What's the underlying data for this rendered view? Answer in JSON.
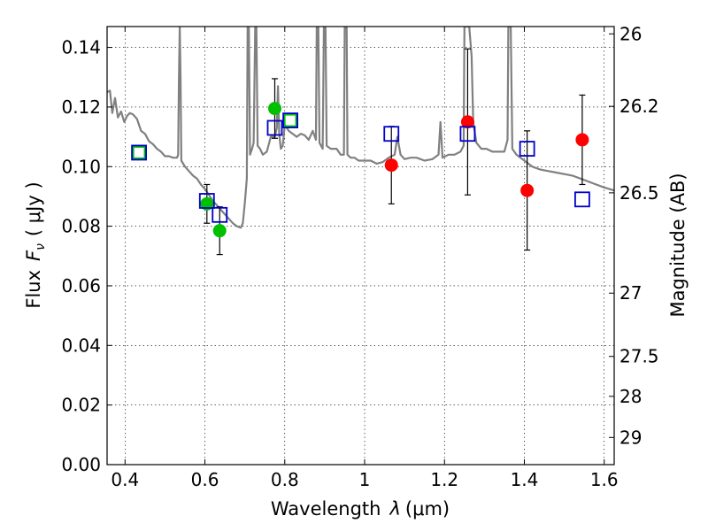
{
  "chart_data": {
    "type": "scatter",
    "xlabel_text": "Wavelength",
    "xlabel_symbol": "λ",
    "xlabel_unit": "(μm)",
    "ylabel_text": "Flux",
    "ylabel_symbol": "F",
    "ylabel_sub": "ν",
    "ylabel_unit": "( μJy )",
    "y2label": "Magnitude (AB)",
    "xlim": [
      0.355,
      1.625
    ],
    "ylim": [
      0.0,
      0.147
    ],
    "grid": true,
    "x_ticks": [
      0.4,
      0.6,
      0.8,
      1.0,
      1.2,
      1.4,
      1.6
    ],
    "x_tick_labels": [
      "0.4",
      "0.6",
      "0.8",
      "1",
      "1.2",
      "1.4",
      "1.6"
    ],
    "y_ticks": [
      0.0,
      0.02,
      0.04,
      0.06,
      0.08,
      0.1,
      0.12,
      0.14
    ],
    "y_tick_labels": [
      "0.00",
      "0.02",
      "0.04",
      "0.06",
      "0.08",
      "0.10",
      "0.12",
      "0.14"
    ],
    "y2_ticks": [
      26,
      26.2,
      26.5,
      27,
      27.5,
      28,
      29
    ],
    "y2_tick_labels": [
      "26",
      "26.2",
      "26.5",
      "27",
      "27.5",
      "28",
      "29"
    ],
    "colors": {
      "model": "#808080",
      "green": "#00c000",
      "red": "#ff0000",
      "blue": "#0000cc",
      "errorbar": "#000000"
    },
    "series": [
      {
        "name": "green points",
        "marker": "circle",
        "points": [
          {
            "x": 0.605,
            "y": 0.0875,
            "err": 0.0065
          },
          {
            "x": 0.637,
            "y": 0.0785,
            "err": 0.008
          },
          {
            "x": 0.775,
            "y": 0.1195,
            "err": 0.01
          }
        ]
      },
      {
        "name": "red points",
        "marker": "circle",
        "points": [
          {
            "x": 1.067,
            "y": 0.1005,
            "err": 0.013
          },
          {
            "x": 1.258,
            "y": 0.115,
            "err": 0.0245
          },
          {
            "x": 1.407,
            "y": 0.092,
            "err": 0.02
          },
          {
            "x": 1.545,
            "y": 0.109,
            "err": 0.015
          }
        ]
      },
      {
        "name": "model photometry",
        "marker": "square",
        "points": [
          {
            "x": 0.435,
            "y": 0.1047
          },
          {
            "x": 0.605,
            "y": 0.0885
          },
          {
            "x": 0.637,
            "y": 0.0838
          },
          {
            "x": 0.775,
            "y": 0.113
          },
          {
            "x": 0.814,
            "y": 0.1155
          },
          {
            "x": 1.067,
            "y": 0.111
          },
          {
            "x": 1.258,
            "y": 0.111
          },
          {
            "x": 1.407,
            "y": 0.106
          },
          {
            "x": 1.545,
            "y": 0.089
          }
        ]
      },
      {
        "name": "green-edge squares",
        "marker": "square",
        "points": [
          {
            "x": 0.435,
            "y": 0.1047
          },
          {
            "x": 0.814,
            "y": 0.1155
          }
        ]
      },
      {
        "name": "model spectrum",
        "marker": "line",
        "points": [
          [
            0.355,
            0.125
          ],
          [
            0.362,
            0.1255
          ],
          [
            0.368,
            0.118
          ],
          [
            0.375,
            0.123
          ],
          [
            0.382,
            0.1165
          ],
          [
            0.39,
            0.1185
          ],
          [
            0.398,
            0.115
          ],
          [
            0.405,
            0.117
          ],
          [
            0.412,
            0.118
          ],
          [
            0.42,
            0.1175
          ],
          [
            0.43,
            0.116
          ],
          [
            0.44,
            0.112
          ],
          [
            0.45,
            0.111
          ],
          [
            0.46,
            0.1085
          ],
          [
            0.47,
            0.1075
          ],
          [
            0.48,
            0.106
          ],
          [
            0.49,
            0.105
          ],
          [
            0.5,
            0.1035
          ],
          [
            0.51,
            0.1035
          ],
          [
            0.52,
            0.103
          ],
          [
            0.53,
            0.103
          ],
          [
            0.533,
            0.104
          ],
          [
            0.535,
            0.13
          ],
          [
            0.537,
            0.147
          ],
          [
            0.539,
            0.13
          ],
          [
            0.541,
            0.102
          ],
          [
            0.55,
            0.1
          ],
          [
            0.56,
            0.0985
          ],
          [
            0.57,
            0.097
          ],
          [
            0.58,
            0.096
          ],
          [
            0.59,
            0.094
          ],
          [
            0.6,
            0.0925
          ],
          [
            0.61,
            0.0905
          ],
          [
            0.62,
            0.0885
          ],
          [
            0.63,
            0.087
          ],
          [
            0.64,
            0.0855
          ],
          [
            0.65,
            0.084
          ],
          [
            0.66,
            0.0825
          ],
          [
            0.67,
            0.081
          ],
          [
            0.68,
            0.08
          ],
          [
            0.69,
            0.0795
          ],
          [
            0.695,
            0.081
          ],
          [
            0.7,
            0.088
          ],
          [
            0.705,
            0.096
          ],
          [
            0.707,
            0.147
          ],
          [
            0.71,
            0.147
          ],
          [
            0.713,
            0.104
          ],
          [
            0.718,
            0.106
          ],
          [
            0.722,
            0.108
          ],
          [
            0.726,
            0.147
          ],
          [
            0.729,
            0.147
          ],
          [
            0.732,
            0.107
          ],
          [
            0.738,
            0.106
          ],
          [
            0.745,
            0.104
          ],
          [
            0.755,
            0.105
          ],
          [
            0.765,
            0.11
          ],
          [
            0.775,
            0.11
          ],
          [
            0.78,
            0.113
          ],
          [
            0.783,
            0.127
          ],
          [
            0.786,
            0.111
          ],
          [
            0.79,
            0.106
          ],
          [
            0.795,
            0.107
          ],
          [
            0.8,
            0.114
          ],
          [
            0.81,
            0.112
          ],
          [
            0.82,
            0.111
          ],
          [
            0.83,
            0.11
          ],
          [
            0.84,
            0.111
          ],
          [
            0.85,
            0.1105
          ],
          [
            0.86,
            0.109
          ],
          [
            0.87,
            0.112
          ],
          [
            0.878,
            0.109
          ],
          [
            0.88,
            0.147
          ],
          [
            0.884,
            0.147
          ],
          [
            0.887,
            0.108
          ],
          [
            0.895,
            0.106
          ],
          [
            0.898,
            0.147
          ],
          [
            0.902,
            0.147
          ],
          [
            0.905,
            0.107
          ],
          [
            0.915,
            0.106
          ],
          [
            0.93,
            0.106
          ],
          [
            0.94,
            0.104
          ],
          [
            0.948,
            0.104
          ],
          [
            0.95,
            0.147
          ],
          [
            0.955,
            0.147
          ],
          [
            0.957,
            0.104
          ],
          [
            0.965,
            0.103
          ],
          [
            0.975,
            0.103
          ],
          [
            0.985,
            0.102
          ],
          [
            1.0,
            0.102
          ],
          [
            1.015,
            0.102
          ],
          [
            1.03,
            0.101
          ],
          [
            1.045,
            0.1015
          ],
          [
            1.06,
            0.103
          ],
          [
            1.075,
            0.104
          ],
          [
            1.082,
            0.11
          ],
          [
            1.09,
            0.104
          ],
          [
            1.1,
            0.1025
          ],
          [
            1.115,
            0.103
          ],
          [
            1.13,
            0.103
          ],
          [
            1.15,
            0.102
          ],
          [
            1.17,
            0.1025
          ],
          [
            1.185,
            0.104
          ],
          [
            1.19,
            0.115
          ],
          [
            1.195,
            0.103
          ],
          [
            1.21,
            0.104
          ],
          [
            1.225,
            0.104
          ],
          [
            1.24,
            0.105
          ],
          [
            1.248,
            0.107
          ],
          [
            1.25,
            0.147
          ],
          [
            1.262,
            0.147
          ],
          [
            1.268,
            0.137
          ],
          [
            1.272,
            0.115
          ],
          [
            1.28,
            0.108
          ],
          [
            1.292,
            0.106
          ],
          [
            1.305,
            0.106
          ],
          [
            1.32,
            0.105
          ],
          [
            1.335,
            0.105
          ],
          [
            1.35,
            0.105
          ],
          [
            1.358,
            0.109
          ],
          [
            1.36,
            0.147
          ],
          [
            1.366,
            0.147
          ],
          [
            1.37,
            0.106
          ],
          [
            1.38,
            0.104
          ],
          [
            1.4,
            0.102
          ],
          [
            1.42,
            0.1
          ],
          [
            1.44,
            0.099
          ],
          [
            1.46,
            0.0985
          ],
          [
            1.48,
            0.098
          ],
          [
            1.5,
            0.0975
          ],
          [
            1.52,
            0.097
          ],
          [
            1.54,
            0.096
          ],
          [
            1.56,
            0.095
          ],
          [
            1.58,
            0.094
          ],
          [
            1.6,
            0.093
          ],
          [
            1.625,
            0.092
          ]
        ]
      }
    ]
  }
}
